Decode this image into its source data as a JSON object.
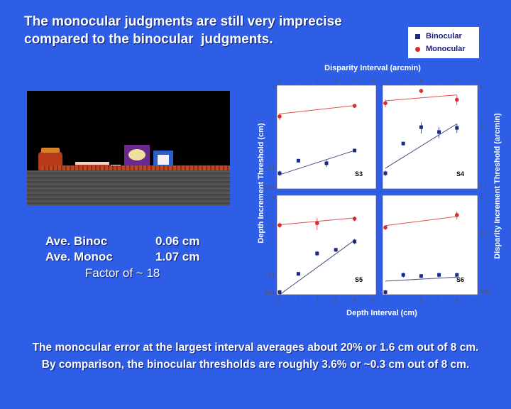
{
  "title": [
    "The monocular judgments are still very imprecise",
    "compared to the binocular  judgments."
  ],
  "photo_label": "",
  "stats": [
    {
      "label": "Ave. Binoc",
      "value": "0.06 cm"
    },
    {
      "label": "Ave. Monoc",
      "value": "1.07 cm"
    }
  ],
  "factor": "Factor of  ~ 18",
  "bottom_text": [
    "The monocular error at the largest interval averages about 20% or 1.6 cm out of 8 cm.",
    "By comparison, the binocular thresholds are roughly 3.6% or ~0.3 cm out of 8 cm."
  ],
  "legend": [
    {
      "name": "Binocular",
      "marker": "square",
      "color": "#1a2a8a"
    },
    {
      "name": "Monocular",
      "marker": "circle",
      "color": "#e02a2a"
    }
  ],
  "axis_labels": {
    "top": "Disparity Interval (arcmin)",
    "bottom": "Depth Interval (cm)",
    "left": "Depth Increment Threshold (cm)",
    "right": "Disparity Increment Threshold (arcmin)"
  },
  "chart_data": [
    {
      "type": "scatter",
      "panel": "S3",
      "x_range": [
        0,
        10
      ],
      "ylim": [
        0.04,
        4
      ],
      "y_scale": "log",
      "top_ticks": [
        "0",
        "3",
        "6",
        "9",
        "12",
        "15"
      ],
      "bottom_ticks": [],
      "left_ticks": [
        "4",
        "1",
        "0.1",
        "0.04"
      ],
      "right_ticks": [],
      "series": [
        {
          "name": "Binocular",
          "x": [
            0,
            2,
            5,
            8
          ],
          "y": [
            0.08,
            0.14,
            0.125,
            0.22
          ],
          "err": [
            0.01,
            0.008,
            0.02,
            0.01
          ],
          "fit": [
            [
              0,
              0.075
            ],
            [
              8,
              0.22
            ]
          ]
        },
        {
          "name": "Monocular",
          "x": [
            0,
            8
          ],
          "y": [
            1.0,
            1.6
          ],
          "err": [
            0.15,
            0.15
          ],
          "fit": [
            [
              0,
              1.12
            ],
            [
              8,
              1.62
            ]
          ]
        }
      ]
    },
    {
      "type": "scatter",
      "panel": "S4",
      "x_range": [
        0,
        10
      ],
      "ylim": [
        0.04,
        4
      ],
      "y_scale": "log",
      "top_ticks": [
        "0",
        "3",
        "6",
        "9",
        "12",
        "15"
      ],
      "bottom_ticks": [],
      "left_ticks": [],
      "right_ticks": [
        "6",
        "1",
        "0.1"
      ],
      "series": [
        {
          "name": "Binocular",
          "x": [
            0,
            2,
            4,
            6,
            8
          ],
          "y": [
            0.08,
            0.3,
            0.62,
            0.5,
            0.6
          ],
          "err": [
            0.01,
            0.02,
            0.15,
            0.12,
            0.12
          ],
          "fit": [
            [
              0,
              0.1
            ],
            [
              8,
              0.72
            ]
          ]
        },
        {
          "name": "Monocular",
          "x": [
            0,
            4,
            8
          ],
          "y": [
            1.8,
            3.1,
            2.1
          ],
          "err": [
            0.3,
            0.3,
            0.45
          ],
          "fit": [
            [
              0,
              2.0
            ],
            [
              8,
              2.6
            ]
          ]
        }
      ]
    },
    {
      "type": "scatter",
      "panel": "S5",
      "x_range": [
        0,
        10
      ],
      "ylim": [
        0.04,
        4
      ],
      "y_scale": "log",
      "top_ticks": [],
      "bottom_ticks": [
        "0",
        "2",
        "4",
        "6",
        "8",
        "10"
      ],
      "left_ticks": [
        "4",
        "1",
        "0.1",
        "0.04"
      ],
      "right_ticks": [],
      "series": [
        {
          "name": "Binocular",
          "x": [
            0,
            2,
            4,
            6,
            8
          ],
          "y": [
            0.045,
            0.105,
            0.27,
            0.32,
            0.47
          ],
          "err": [
            0.005,
            0.008,
            0.03,
            0.03,
            0.06
          ],
          "fit": [
            [
              0,
              0.04
            ],
            [
              8,
              0.5
            ]
          ]
        },
        {
          "name": "Monocular",
          "x": [
            0,
            4,
            8
          ],
          "y": [
            1.0,
            1.1,
            1.35
          ],
          "err": [
            0.12,
            0.3,
            0.15
          ],
          "fit": [
            [
              0,
              1.02
            ],
            [
              8,
              1.4
            ]
          ]
        }
      ]
    },
    {
      "type": "scatter",
      "panel": "S6",
      "x_range": [
        0,
        10
      ],
      "ylim": [
        0.04,
        4
      ],
      "y_scale": "log",
      "top_ticks": [],
      "bottom_ticks": [
        "0",
        "2",
        "4",
        "6",
        "8",
        "10"
      ],
      "left_ticks": [],
      "right_ticks": [
        "1",
        "0.1",
        "0.06"
      ],
      "series": [
        {
          "name": "Binocular",
          "x": [
            0,
            2,
            4,
            6,
            8
          ],
          "y": [
            0.045,
            0.1,
            0.095,
            0.1,
            0.1
          ],
          "err": [
            0.005,
            0.012,
            0.008,
            0.012,
            0.01
          ],
          "fit": [
            [
              0,
              0.075
            ],
            [
              8,
              0.09
            ]
          ]
        },
        {
          "name": "Monocular",
          "x": [
            0,
            8
          ],
          "y": [
            0.9,
            1.6
          ],
          "err": [
            0.1,
            0.3
          ],
          "fit": [
            [
              0,
              0.98
            ],
            [
              8,
              1.5
            ]
          ]
        }
      ]
    }
  ]
}
